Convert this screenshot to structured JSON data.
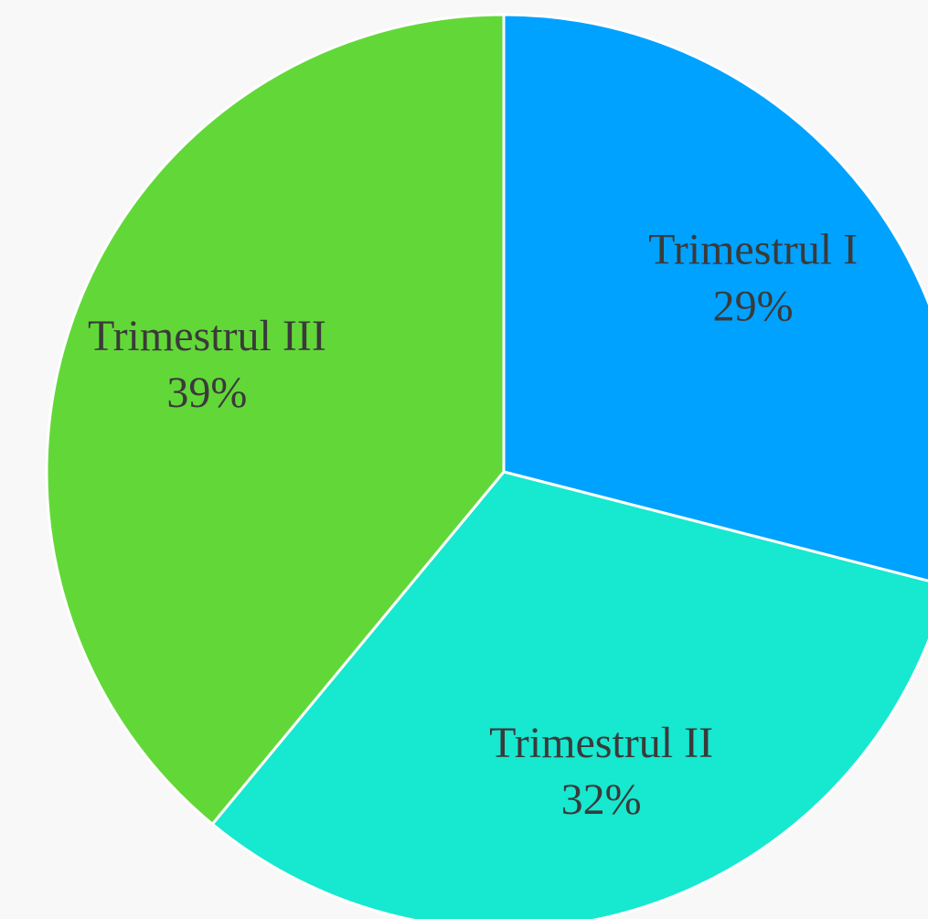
{
  "chart_data": {
    "type": "pie",
    "categories": [
      "Trimestrul I",
      "Trimestrul II",
      "Trimestrul III"
    ],
    "values": [
      29,
      32,
      39
    ],
    "value_labels": [
      "29%",
      "32%",
      "39%"
    ],
    "colors": [
      "#00a2ff",
      "#17e8d0",
      "#62d838"
    ]
  }
}
